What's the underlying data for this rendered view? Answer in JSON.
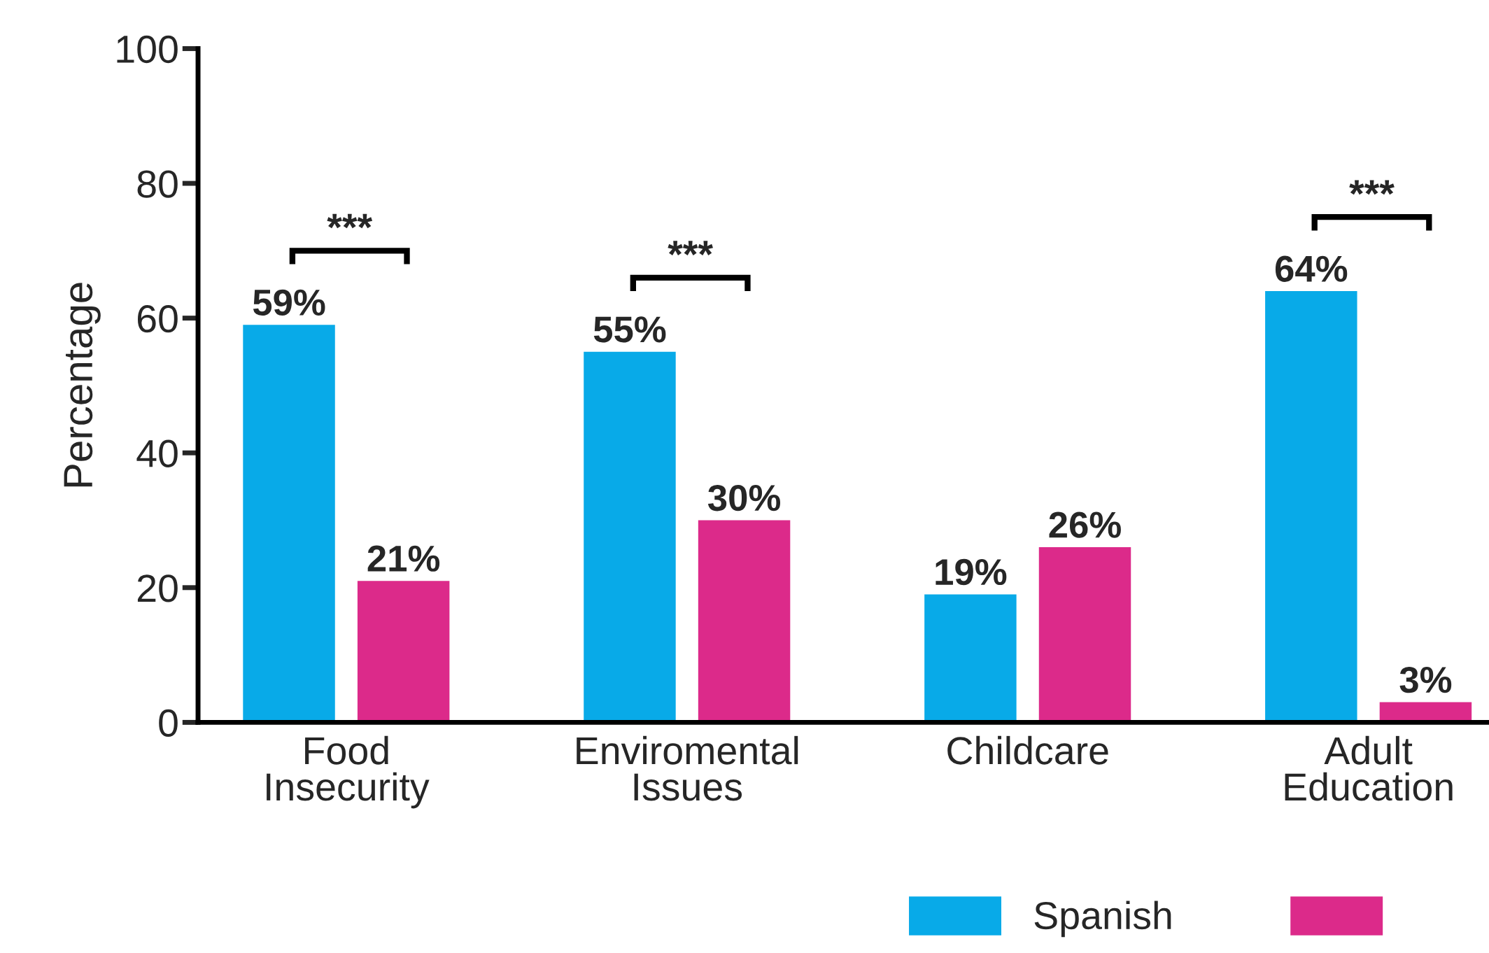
{
  "chart_data": {
    "type": "bar",
    "ylabel": "Percentage",
    "categories": [
      "Food\nInsecurity",
      "Enviromental\nIssues",
      "Childcare",
      "Adult\nEducation"
    ],
    "series": [
      {
        "name": "Spanish",
        "color": "#08aae8",
        "values": [
          59,
          55,
          19,
          64
        ],
        "value_labels": [
          "59%",
          "55%",
          "19%",
          "64%"
        ]
      },
      {
        "color": "#dc2a8a",
        "values": [
          21,
          30,
          26,
          3
        ],
        "value_labels": [
          "21%",
          "30%",
          "26%",
          "3%"
        ]
      }
    ],
    "ylim": [
      0,
      100
    ],
    "yticks": [
      0,
      20,
      40,
      60,
      80,
      100
    ],
    "grid": false,
    "legend": "bottom",
    "annotations": [
      "***",
      "***",
      "***"
    ]
  }
}
